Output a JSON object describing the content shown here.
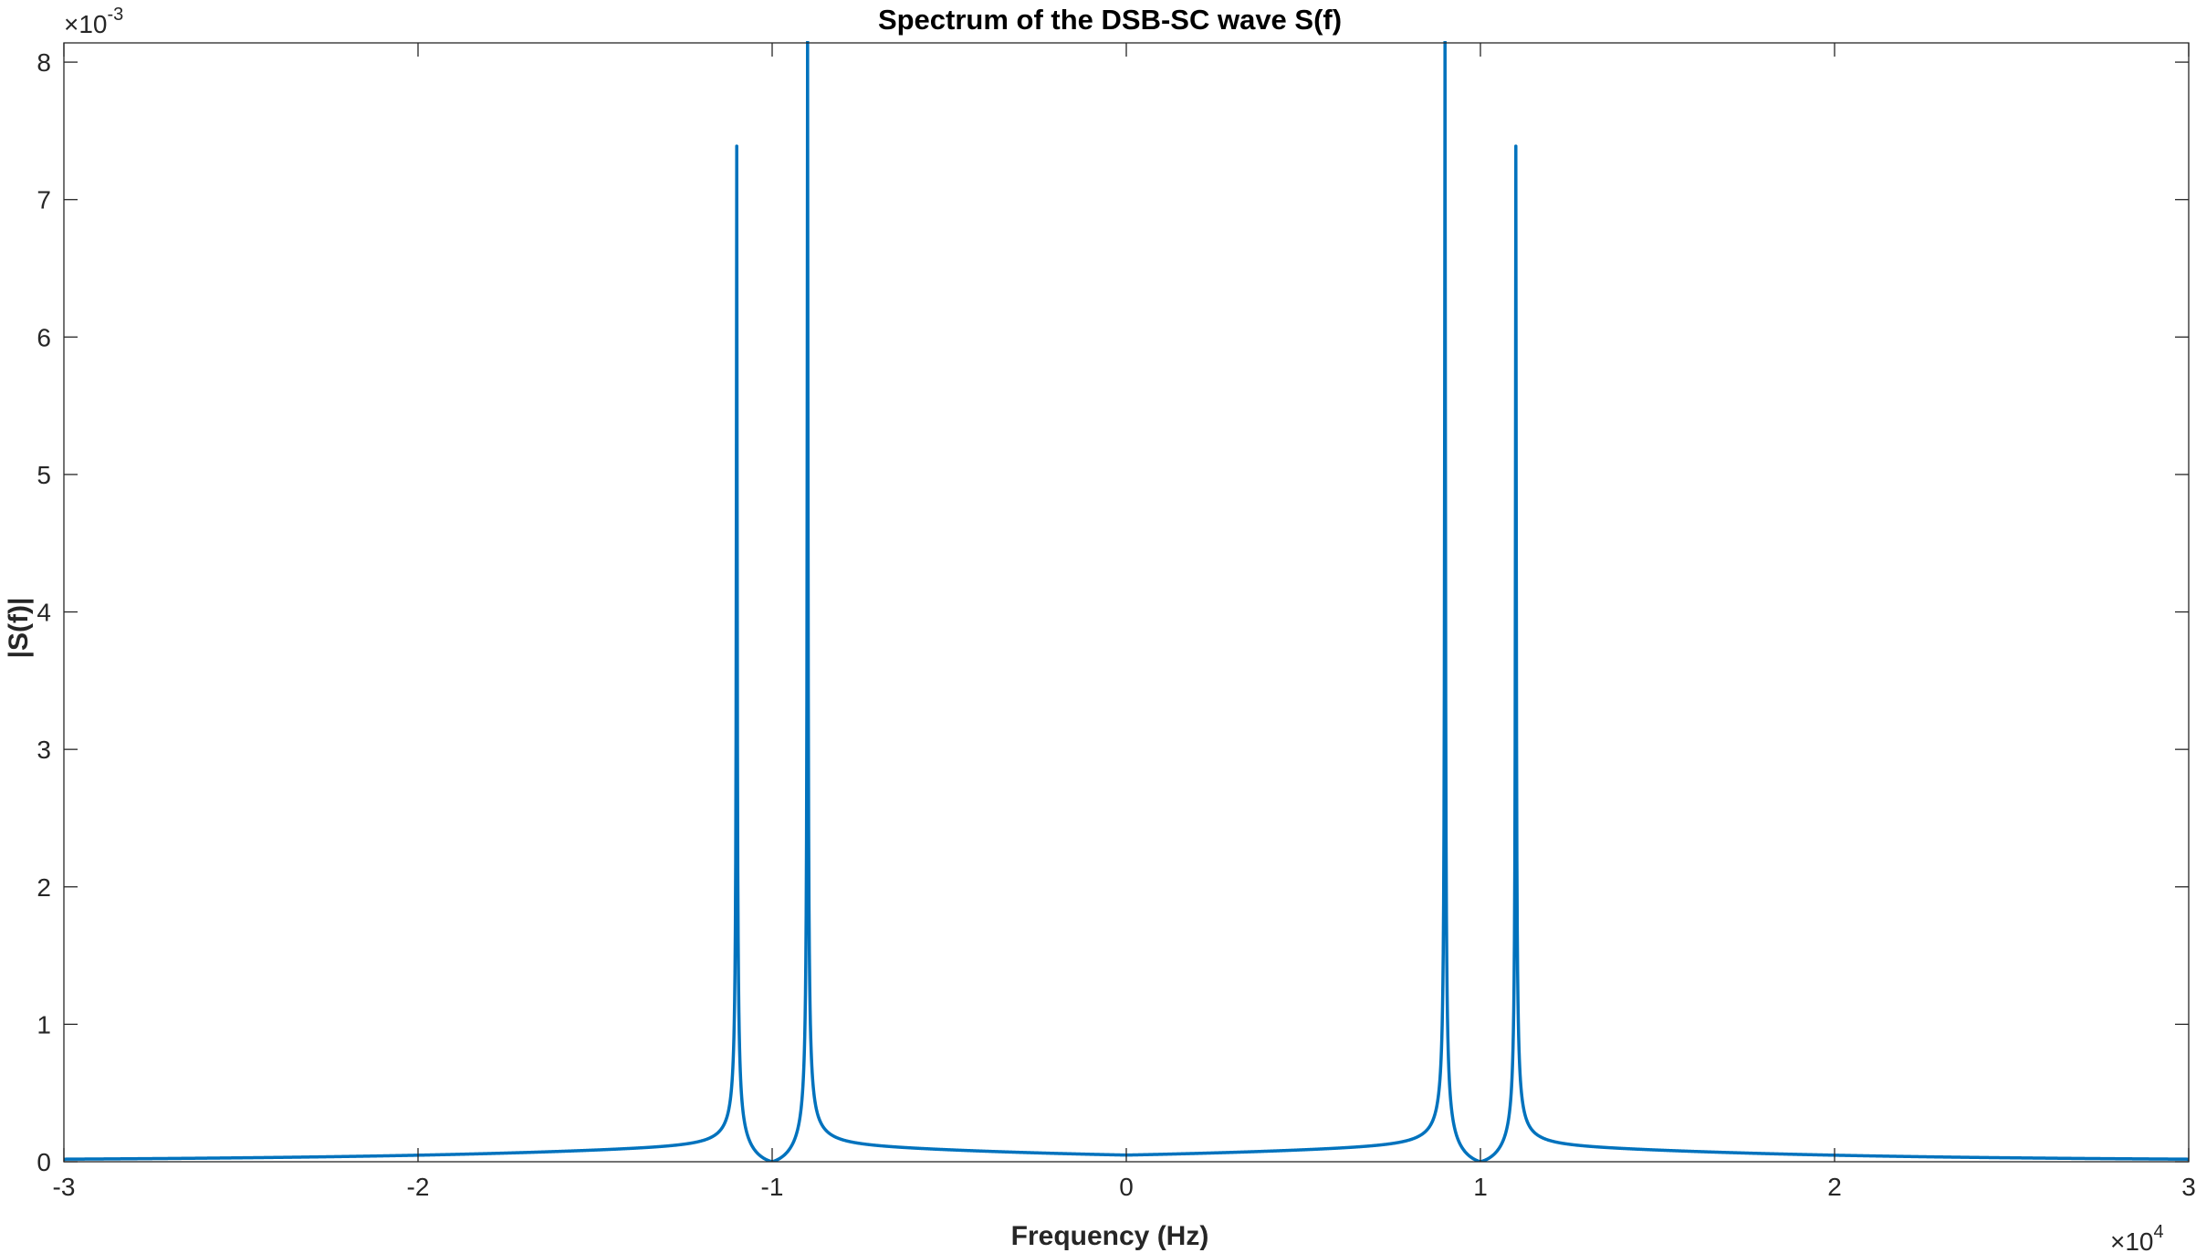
{
  "chart_data": {
    "type": "line",
    "title": "Spectrum of the DSB-SC wave S(f)",
    "xlabel": "Frequency (Hz)",
    "ylabel": "|S(f)|",
    "x_multiplier_label": {
      "base": "×10",
      "exponent": "4"
    },
    "y_multiplier_label": {
      "base": "×10",
      "exponent": "-3"
    },
    "xlim": [
      -30000,
      30000
    ],
    "ylim": [
      0,
      0.00814
    ],
    "x_ticks": [
      -30000,
      -20000,
      -10000,
      0,
      10000,
      20000,
      30000
    ],
    "x_tick_labels": [
      "-3",
      "-2",
      "-1",
      "0",
      "1",
      "2",
      "3"
    ],
    "y_ticks": [
      0,
      0.001,
      0.002,
      0.003,
      0.004,
      0.005,
      0.006,
      0.007,
      0.008
    ],
    "y_tick_labels": [
      "0",
      "1",
      "2",
      "3",
      "4",
      "5",
      "6",
      "7",
      "8"
    ],
    "grid": false,
    "box": true,
    "series": [
      {
        "color": "#0072BD",
        "peaks": [
          {
            "x": -11000,
            "y": 0.0073
          },
          {
            "x": -9000,
            "y": 0.00814
          },
          {
            "x": 9000,
            "y": 0.00814
          },
          {
            "x": 11000,
            "y": 0.0073
          }
        ],
        "zeros": [
          -10000,
          10000
        ],
        "baseline_at_center": 3e-05
      }
    ]
  }
}
